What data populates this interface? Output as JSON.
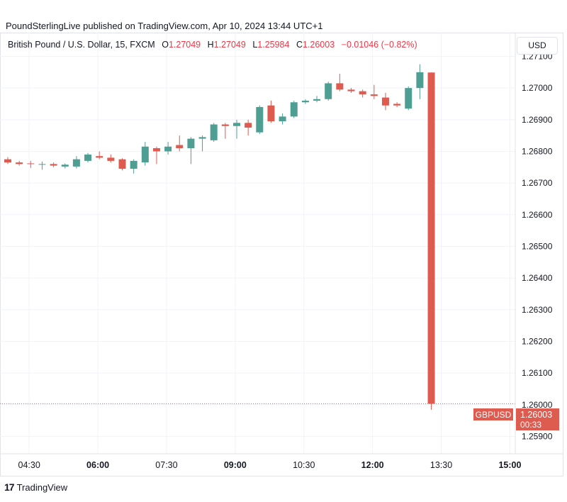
{
  "publisher_line": "PoundSterlingLive published on TradingView.com, Apr 10, 2024 13:44 UTC+1",
  "legend": {
    "symbol": "British Pound / U.S. Dollar, 15, FXCM",
    "o_label": "O",
    "o_value": "1.27049",
    "h_label": "H",
    "h_value": "1.27049",
    "l_label": "L",
    "l_value": "1.25984",
    "c_label": "C",
    "c_value": "1.26003",
    "change": "−0.01046 (−0.82%)"
  },
  "currency_button": "USD",
  "brand": {
    "logo": "17",
    "name": "TradingView"
  },
  "colors": {
    "up": "#4f9e93",
    "down": "#de5b50",
    "price_tag": "#de5b50",
    "grid": "#f0f3fa"
  },
  "chart_data": {
    "type": "candlestick",
    "y_ticks": [
      "1.25900",
      "1.26000",
      "1.26100",
      "1.26200",
      "1.26300",
      "1.26400",
      "1.26500",
      "1.26600",
      "1.26700",
      "1.26800",
      "1.26900",
      "1.27000",
      "1.27100"
    ],
    "ylim": [
      1.25845,
      1.27175
    ],
    "x_ticks": [
      {
        "label": "04:30",
        "i": 1,
        "bold": false
      },
      {
        "label": "06:00",
        "i": 7,
        "bold": true
      },
      {
        "label": "07:30",
        "i": 13,
        "bold": false
      },
      {
        "label": "09:00",
        "i": 19,
        "bold": true
      },
      {
        "label": "10:30",
        "i": 25,
        "bold": false
      },
      {
        "label": "12:00",
        "i": 31,
        "bold": true
      },
      {
        "label": "13:30",
        "i": 37,
        "bold": false
      },
      {
        "label": "15:00",
        "i": 43,
        "bold": true
      }
    ],
    "last_price": {
      "symbol": "GBPUSD",
      "value": "1.26003",
      "countdown": "00:33",
      "price": 1.26003
    },
    "candles": [
      [
        1.26775,
        1.26782,
        1.2676,
        1.26765
      ],
      [
        1.26765,
        1.2677,
        1.26755,
        1.2676
      ],
      [
        1.26762,
        1.2677,
        1.26748,
        1.2676
      ],
      [
        1.2676,
        1.26768,
        1.26742,
        1.2676
      ],
      [
        1.2676,
        1.26765,
        1.2675,
        1.26755
      ],
      [
        1.26752,
        1.26762,
        1.26746,
        1.26758
      ],
      [
        1.26752,
        1.26785,
        1.26746,
        1.26775
      ],
      [
        1.2677,
        1.26795,
        1.26765,
        1.2679
      ],
      [
        1.26785,
        1.268,
        1.26775,
        1.2678
      ],
      [
        1.2678,
        1.2679,
        1.26765,
        1.2677
      ],
      [
        1.26775,
        1.26778,
        1.2674,
        1.26745
      ],
      [
        1.26745,
        1.26775,
        1.2673,
        1.2677
      ],
      [
        1.26765,
        1.2683,
        1.26755,
        1.26815
      ],
      [
        1.2681,
        1.26815,
        1.2676,
        1.268
      ],
      [
        1.268,
        1.2683,
        1.2679,
        1.26815
      ],
      [
        1.2682,
        1.2685,
        1.268,
        1.2681
      ],
      [
        1.2681,
        1.26845,
        1.2676,
        1.2684
      ],
      [
        1.2684,
        1.2685,
        1.268,
        1.26845
      ],
      [
        1.26835,
        1.2689,
        1.2683,
        1.26885
      ],
      [
        1.26885,
        1.2689,
        1.2684,
        1.2688
      ],
      [
        1.2688,
        1.269,
        1.2684,
        1.2689
      ],
      [
        1.2689,
        1.269,
        1.2685,
        1.26875
      ],
      [
        1.2686,
        1.26945,
        1.26855,
        1.2694
      ],
      [
        1.26945,
        1.2696,
        1.2689,
        1.26895
      ],
      [
        1.26895,
        1.2692,
        1.26885,
        1.2691
      ],
      [
        1.2691,
        1.2696,
        1.26905,
        1.26955
      ],
      [
        1.26955,
        1.26965,
        1.2695,
        1.2696
      ],
      [
        1.2696,
        1.26975,
        1.26955,
        1.26965
      ],
      [
        1.26965,
        1.2702,
        1.2696,
        1.27015
      ],
      [
        1.27015,
        1.27045,
        1.2699,
        1.26995
      ],
      [
        1.26995,
        1.27,
        1.26985,
        1.2699
      ],
      [
        1.2699,
        1.26995,
        1.2697,
        1.2698
      ],
      [
        1.2698,
        1.2701,
        1.26965,
        1.26975
      ],
      [
        1.2697,
        1.26985,
        1.2693,
        1.26945
      ],
      [
        1.2695,
        1.26955,
        1.2694,
        1.26945
      ],
      [
        1.26935,
        1.27005,
        1.2693,
        1.27
      ],
      [
        1.27,
        1.27075,
        1.26965,
        1.2705
      ],
      [
        1.27049,
        1.27049,
        1.25984,
        1.26003
      ]
    ]
  }
}
